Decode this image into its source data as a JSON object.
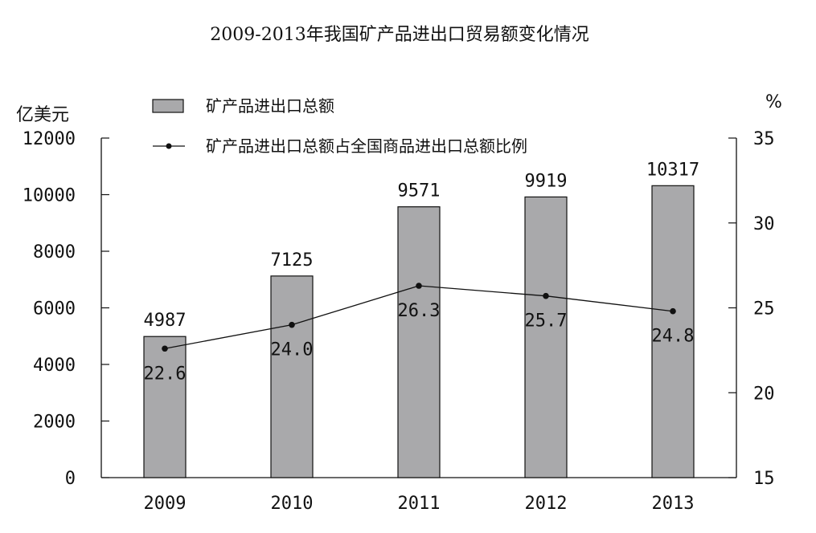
{
  "chart_data": {
    "type": "bar",
    "title": "2009-2013年我国矿产品进出口贸易额变化情况",
    "categories": [
      "2009",
      "2010",
      "2011",
      "2012",
      "2013"
    ],
    "series": [
      {
        "name": "矿产品进出口总额",
        "type": "bar",
        "axis": "left",
        "values": [
          4987,
          7125,
          9571,
          9919,
          10317
        ],
        "color": "#a9a9ab"
      },
      {
        "name": "矿产品进出口总额占全国商品进出口总额比例",
        "type": "line",
        "axis": "right",
        "values": [
          22.6,
          24.0,
          26.3,
          25.7,
          24.8
        ],
        "color": "#111111"
      }
    ],
    "ylabel": "亿美元",
    "ylabel_right": "%",
    "ylim": [
      0,
      12000
    ],
    "ylim_right": [
      15,
      35
    ],
    "yticks": [
      0,
      2000,
      4000,
      6000,
      8000,
      10000,
      12000
    ],
    "yticks_right": [
      15,
      20,
      25,
      30,
      35
    ],
    "grid": false,
    "legend_position": "top-left"
  }
}
